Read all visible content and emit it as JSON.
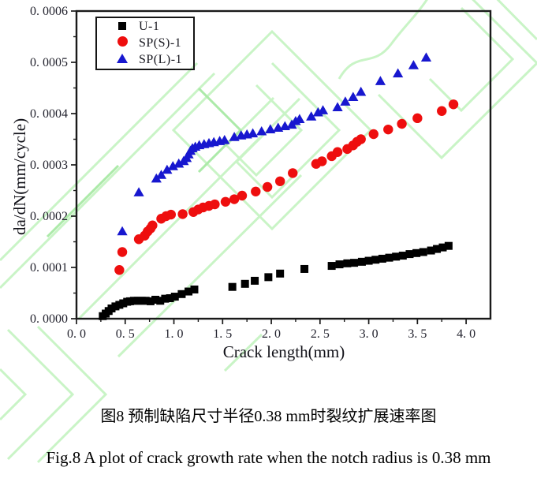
{
  "page": {
    "background": "#ffffff"
  },
  "watermark": {
    "name": "light-green-line-pattern",
    "color": "#c9f4c6",
    "color_dark": "#aceaa9"
  },
  "captions": {
    "zh": "图8  预制缺陷尺寸半径0.38 mm时裂纹扩展速率图",
    "en": "Fig.8 A plot of crack growth rate when the notch radius is 0.38 mm"
  },
  "chart_data": {
    "type": "scatter",
    "title": "",
    "xlabel": "Crack length(mm)",
    "ylabel": "da/dN(mm/cycle)",
    "xlim": [
      0,
      4.25
    ],
    "ylim": [
      0,
      0.0006
    ],
    "grid": false,
    "legend_position": "top-left",
    "frame_color": "#1a1a1a",
    "x_ticks": {
      "values": [
        0.0,
        0.5,
        1.0,
        1.5,
        2.0,
        2.5,
        3.0,
        3.5,
        4.0
      ],
      "labels": [
        "0. 0",
        "0. 5",
        "1. 0",
        "1. 5",
        "2. 0",
        "2. 5",
        "3. 0",
        "3. 5",
        "4. 0"
      ],
      "minor_step": 0.25
    },
    "y_ticks": {
      "values": [
        0,
        0.0001,
        0.0002,
        0.0003,
        0.0004,
        0.0005,
        0.0006
      ],
      "labels": [
        "0. 0000",
        "0. 0001",
        "0. 0002",
        "0. 0003",
        "0. 0004",
        "0. 0005",
        "0. 0006"
      ],
      "minor_step": 5e-05
    },
    "series": [
      {
        "name": "U-1",
        "marker": "square",
        "color": "#000000",
        "points": [
          [
            0.27,
            5e-06
          ],
          [
            0.3,
            1e-05
          ],
          [
            0.33,
            1.5e-05
          ],
          [
            0.36,
            2e-05
          ],
          [
            0.4,
            2.4e-05
          ],
          [
            0.44,
            2.7e-05
          ],
          [
            0.48,
            3e-05
          ],
          [
            0.52,
            3.3e-05
          ],
          [
            0.55,
            3.4e-05
          ],
          [
            0.59,
            3.5e-05
          ],
          [
            0.63,
            3.5e-05
          ],
          [
            0.67,
            3.5e-05
          ],
          [
            0.71,
            3.5e-05
          ],
          [
            0.76,
            3.4e-05
          ],
          [
            0.81,
            3.7e-05
          ],
          [
            0.86,
            3.5e-05
          ],
          [
            0.91,
            3.9e-05
          ],
          [
            0.96,
            4e-05
          ],
          [
            1.01,
            4.3e-05
          ],
          [
            1.08,
            4.8e-05
          ],
          [
            1.15,
            5.3e-05
          ],
          [
            1.21,
            5.7e-05
          ],
          [
            1.6,
            6.2e-05
          ],
          [
            1.73,
            6.8e-05
          ],
          [
            1.83,
            7.4e-05
          ],
          [
            1.97,
            8.1e-05
          ],
          [
            2.09,
            8.8e-05
          ],
          [
            2.34,
            9.7e-05
          ],
          [
            2.62,
            0.000103
          ],
          [
            2.7,
            0.000106
          ],
          [
            2.78,
            0.000108
          ],
          [
            2.85,
            0.000109
          ],
          [
            2.93,
            0.000111
          ],
          [
            3.0,
            0.000113
          ],
          [
            3.07,
            0.000115
          ],
          [
            3.14,
            0.000117
          ],
          [
            3.21,
            0.000119
          ],
          [
            3.28,
            0.000121
          ],
          [
            3.35,
            0.000123
          ],
          [
            3.42,
            0.000126
          ],
          [
            3.49,
            0.000128
          ],
          [
            3.56,
            0.00013
          ],
          [
            3.64,
            0.000133
          ],
          [
            3.7,
            0.000136
          ],
          [
            3.76,
            0.000139
          ],
          [
            3.82,
            0.000142
          ]
        ]
      },
      {
        "name": "SP(S)-1",
        "marker": "circle",
        "color": "#ee0e0e",
        "points": [
          [
            0.44,
            9.5e-05
          ],
          [
            0.47,
            0.00013
          ],
          [
            0.64,
            0.000155
          ],
          [
            0.7,
            0.000162
          ],
          [
            0.73,
            0.00017
          ],
          [
            0.76,
            0.000176
          ],
          [
            0.78,
            0.000182
          ],
          [
            0.87,
            0.000195
          ],
          [
            0.92,
            0.0002
          ],
          [
            0.97,
            0.000203
          ],
          [
            1.09,
            0.000204
          ],
          [
            1.2,
            0.000208
          ],
          [
            1.25,
            0.000213
          ],
          [
            1.3,
            0.000217
          ],
          [
            1.36,
            0.00022
          ],
          [
            1.42,
            0.000223
          ],
          [
            1.53,
            0.000228
          ],
          [
            1.62,
            0.000233
          ],
          [
            1.7,
            0.00024
          ],
          [
            1.84,
            0.000248
          ],
          [
            1.96,
            0.000257
          ],
          [
            2.09,
            0.000268
          ],
          [
            2.22,
            0.000284
          ],
          [
            2.46,
            0.000302
          ],
          [
            2.52,
            0.000307
          ],
          [
            2.62,
            0.000317
          ],
          [
            2.68,
            0.000325
          ],
          [
            2.78,
            0.000331
          ],
          [
            2.84,
            0.000338
          ],
          [
            2.88,
            0.000345
          ],
          [
            2.92,
            0.00035
          ],
          [
            3.05,
            0.00036
          ],
          [
            3.2,
            0.000369
          ],
          [
            3.34,
            0.00038
          ],
          [
            3.5,
            0.000391
          ],
          [
            3.75,
            0.000405
          ],
          [
            3.87,
            0.000418
          ]
        ]
      },
      {
        "name": "SP(L)-1",
        "marker": "triangle",
        "color": "#1717cf",
        "points": [
          [
            0.47,
            0.00017
          ],
          [
            0.64,
            0.000246
          ],
          [
            0.82,
            0.000273
          ],
          [
            0.87,
            0.00028
          ],
          [
            0.93,
            0.00029
          ],
          [
            0.99,
            0.000297
          ],
          [
            1.05,
            0.000302
          ],
          [
            1.1,
            0.000307
          ],
          [
            1.13,
            0.000313
          ],
          [
            1.15,
            0.00032
          ],
          [
            1.17,
            0.000327
          ],
          [
            1.19,
            0.000332
          ],
          [
            1.22,
            0.000335
          ],
          [
            1.26,
            0.000338
          ],
          [
            1.31,
            0.00034
          ],
          [
            1.36,
            0.000342
          ],
          [
            1.41,
            0.000344
          ],
          [
            1.47,
            0.000346
          ],
          [
            1.52,
            0.000348
          ],
          [
            1.62,
            0.000354
          ],
          [
            1.69,
            0.000357
          ],
          [
            1.75,
            0.000359
          ],
          [
            1.81,
            0.000361
          ],
          [
            1.9,
            0.000365
          ],
          [
            1.99,
            0.000369
          ],
          [
            2.07,
            0.000372
          ],
          [
            2.14,
            0.000375
          ],
          [
            2.21,
            0.000378
          ],
          [
            2.25,
            0.000385
          ],
          [
            2.29,
            0.000389
          ],
          [
            2.41,
            0.000394
          ],
          [
            2.48,
            0.000402
          ],
          [
            2.53,
            0.000406
          ],
          [
            2.68,
            0.000412
          ],
          [
            2.76,
            0.000423
          ],
          [
            2.84,
            0.000432
          ],
          [
            2.92,
            0.000442
          ],
          [
            3.12,
            0.000463
          ],
          [
            3.3,
            0.000478
          ],
          [
            3.46,
            0.000494
          ],
          [
            3.59,
            0.000509
          ]
        ]
      }
    ]
  }
}
